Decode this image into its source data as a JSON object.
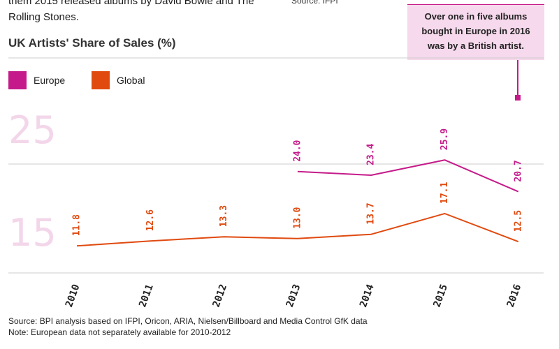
{
  "intro_text": "them 2015 released albums by David Bowie and The Rolling Stones.",
  "top_source": "Source: IFPI",
  "callout_text": "Over one in five albums bought in Europe in 2016 was by a British artist.",
  "colors": {
    "europe": "#c51b8a",
    "global": "#e04a0f",
    "band_label": "#f3d6ea",
    "grid": "#cccccc",
    "axis_text": "#222222"
  },
  "chart_data": {
    "type": "line",
    "title": "UK Artists' Share of Sales (%)",
    "xlabel": "",
    "ylabel": "",
    "categories": [
      "2010",
      "2011",
      "2012",
      "2013",
      "2014",
      "2015",
      "2016"
    ],
    "series": [
      {
        "name": "Europe",
        "key": "europe",
        "values": [
          null,
          null,
          null,
          24.0,
          23.4,
          25.9,
          20.7
        ],
        "labels": [
          "",
          "",
          "",
          "24.0",
          "23.4",
          "25.9",
          "20.7"
        ]
      },
      {
        "name": "Global",
        "key": "global",
        "values": [
          11.8,
          12.6,
          13.3,
          13.0,
          13.7,
          17.1,
          12.5
        ],
        "labels": [
          "11.8",
          "12.6",
          "13.3",
          "13.0",
          "13.7",
          "17.1",
          "12.5"
        ]
      }
    ],
    "y_band_labels": [
      "25",
      "15"
    ],
    "grid": true,
    "legend": "top-left"
  },
  "footer": {
    "source": "Source: BPI analysis based on IFPI, Oricon, ARIA, Nielsen/Billboard and Media Control GfK data",
    "note": "Note: European data not separately available for 2010-2012"
  }
}
